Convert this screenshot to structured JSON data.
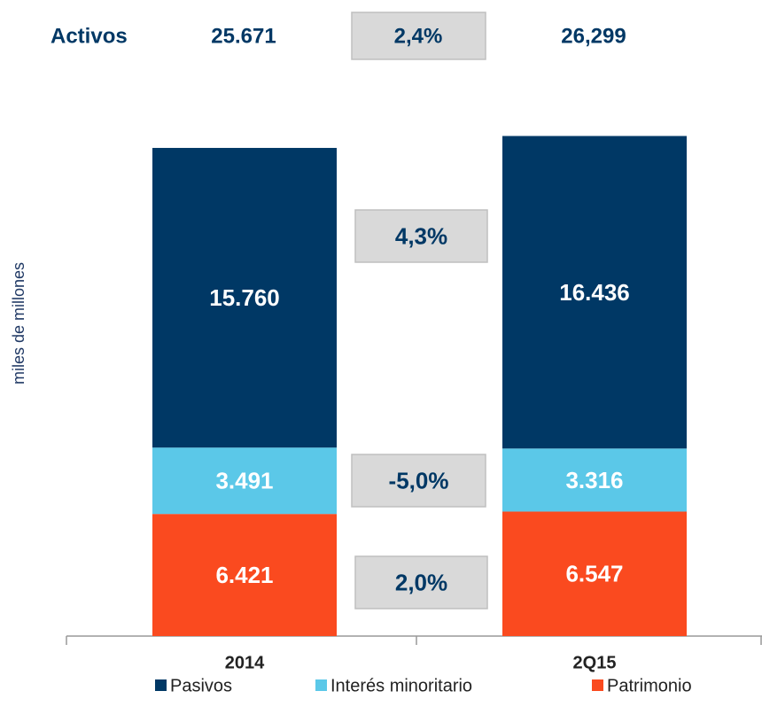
{
  "chart_data": {
    "type": "stacked_bar",
    "header": {
      "label": "Activos",
      "values": [
        "25.671",
        "26,299"
      ],
      "change": "2,4%"
    },
    "y_label": "miles de millones",
    "categories": [
      "2014",
      "2Q15"
    ],
    "series": [
      {
        "name": "Pasivos",
        "color": "#003865",
        "values": [
          15760,
          16436
        ],
        "value_labels": [
          "15.760",
          "16.436"
        ]
      },
      {
        "name": "Interés minoritario",
        "color": "#5bc8e8",
        "values": [
          3491,
          3316
        ],
        "value_labels": [
          "3.491",
          "3.316"
        ]
      },
      {
        "name": "Patrimonio",
        "color": "#fa4a1f",
        "values": [
          6421,
          6547
        ],
        "value_labels": [
          "6.421",
          "6.547"
        ]
      }
    ],
    "annotations": [
      "4,3%",
      "-5,0%",
      "2,0%"
    ],
    "ylim": [
      0,
      28000
    ]
  }
}
